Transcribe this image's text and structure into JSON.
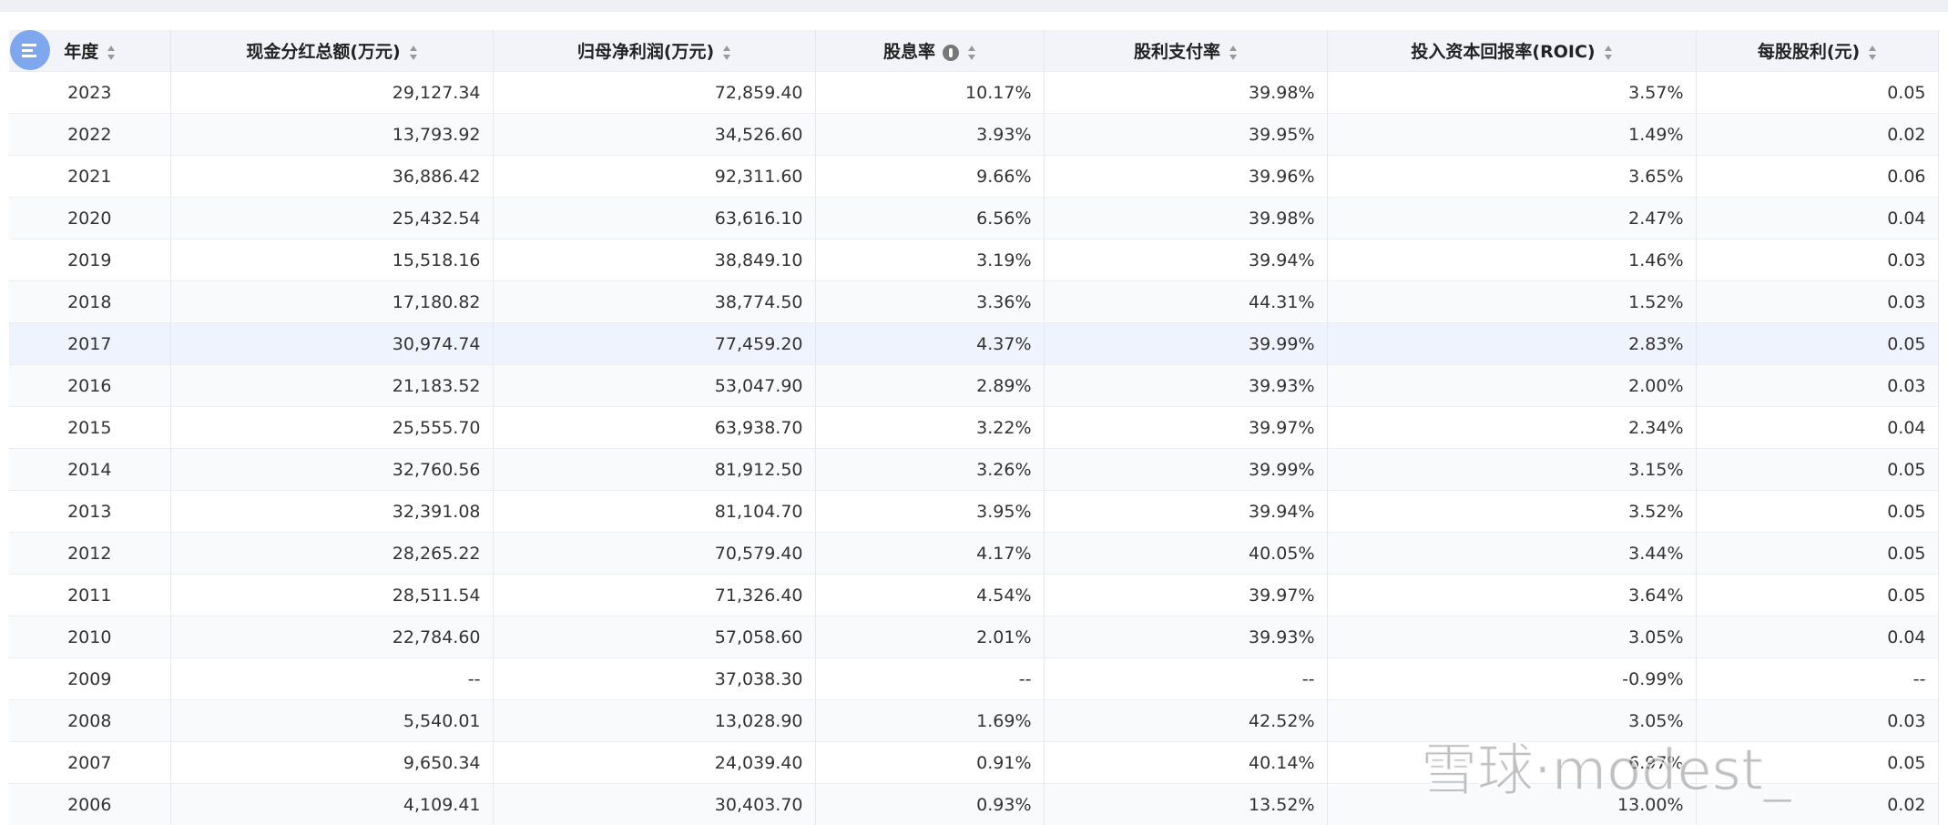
{
  "table": {
    "headers": [
      "年度",
      "现金分红总额(万元)",
      "归母净利润(万元)",
      "股息率",
      "股利支付率",
      "投入资本回报率(ROIC)",
      "每股股利(元)"
    ],
    "rows": [
      [
        "2023",
        "29,127.34",
        "72,859.40",
        "10.17%",
        "39.98%",
        "3.57%",
        "0.05"
      ],
      [
        "2022",
        "13,793.92",
        "34,526.60",
        "3.93%",
        "39.95%",
        "1.49%",
        "0.02"
      ],
      [
        "2021",
        "36,886.42",
        "92,311.60",
        "9.66%",
        "39.96%",
        "3.65%",
        "0.06"
      ],
      [
        "2020",
        "25,432.54",
        "63,616.10",
        "6.56%",
        "39.98%",
        "2.47%",
        "0.04"
      ],
      [
        "2019",
        "15,518.16",
        "38,849.10",
        "3.19%",
        "39.94%",
        "1.46%",
        "0.03"
      ],
      [
        "2018",
        "17,180.82",
        "38,774.50",
        "3.36%",
        "44.31%",
        "1.52%",
        "0.03"
      ],
      [
        "2017",
        "30,974.74",
        "77,459.20",
        "4.37%",
        "39.99%",
        "2.83%",
        "0.05"
      ],
      [
        "2016",
        "21,183.52",
        "53,047.90",
        "2.89%",
        "39.93%",
        "2.00%",
        "0.03"
      ],
      [
        "2015",
        "25,555.70",
        "63,938.70",
        "3.22%",
        "39.97%",
        "2.34%",
        "0.04"
      ],
      [
        "2014",
        "32,760.56",
        "81,912.50",
        "3.26%",
        "39.99%",
        "3.15%",
        "0.05"
      ],
      [
        "2013",
        "32,391.08",
        "81,104.70",
        "3.95%",
        "39.94%",
        "3.52%",
        "0.05"
      ],
      [
        "2012",
        "28,265.22",
        "70,579.40",
        "4.17%",
        "40.05%",
        "3.44%",
        "0.05"
      ],
      [
        "2011",
        "28,511.54",
        "71,326.40",
        "4.54%",
        "39.97%",
        "3.64%",
        "0.05"
      ],
      [
        "2010",
        "22,784.60",
        "57,058.60",
        "2.01%",
        "39.93%",
        "3.05%",
        "0.04"
      ],
      [
        "2009",
        "--",
        "37,038.30",
        "--",
        "--",
        "-0.99%",
        "--"
      ],
      [
        "2008",
        "5,540.01",
        "13,028.90",
        "1.69%",
        "42.52%",
        "3.05%",
        "0.03"
      ],
      [
        "2007",
        "9,650.34",
        "24,039.40",
        "0.91%",
        "40.14%",
        "6.97%",
        "0.05"
      ],
      [
        "2006",
        "4,109.41",
        "30,403.70",
        "0.93%",
        "13.52%",
        "13.00%",
        "0.02"
      ]
    ]
  },
  "watermark": "雪球·modest_"
}
